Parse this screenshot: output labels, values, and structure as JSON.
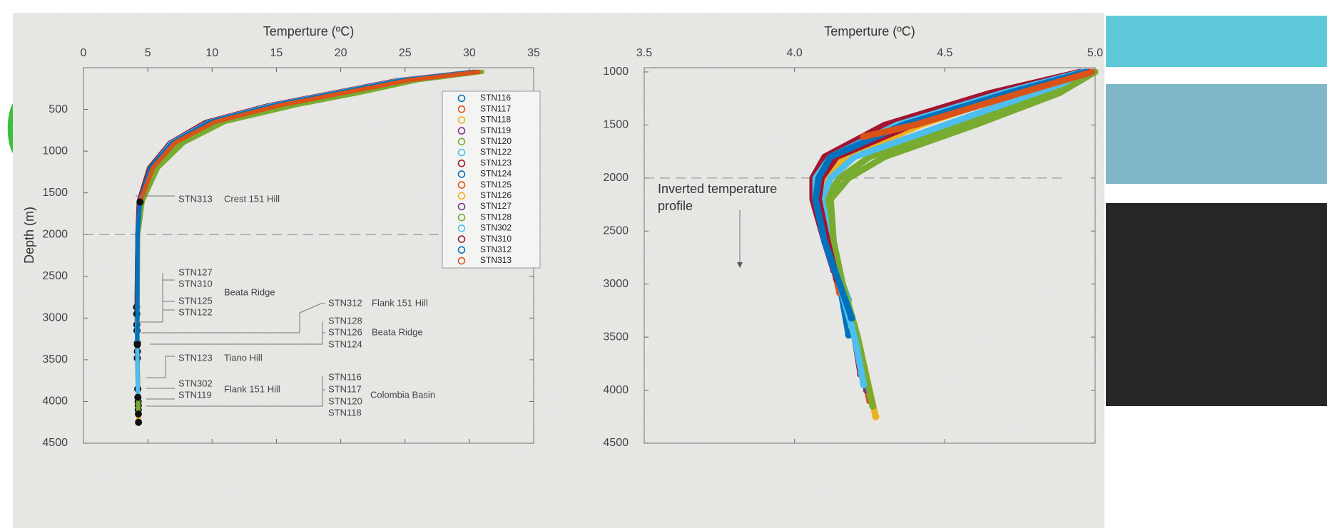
{
  "chart_data": [
    {
      "type": "line",
      "xlabel": "Temperture (ºC)",
      "ylabel": "Depth (m)",
      "xlim": [
        0,
        35
      ],
      "xticks": [
        0,
        5,
        10,
        15,
        20,
        25,
        30,
        35
      ],
      "ylim": [
        0,
        4500
      ],
      "yticks": [
        500,
        1000,
        1500,
        2000,
        2500,
        3000,
        3500,
        4000,
        4500
      ],
      "y_inverted": true,
      "legend": true,
      "end_markers": true,
      "ref_line": 2000,
      "annotations": [
        "STN313",
        "Crest 151 Hill",
        "STN127",
        "STN310",
        "STN125",
        "STN122",
        "Beata Ridge",
        "STN312",
        "Flank 151 Hill",
        "STN128",
        "STN126",
        "STN124",
        "Beata Ridge",
        "STN123",
        "Tiano Hill",
        "STN302",
        "STN119",
        "Flank 151 Hill",
        "STN116",
        "STN117",
        "STN120",
        "STN118",
        "Colombia Basin"
      ],
      "series": [
        {
          "name": "STN116",
          "color": "#0072BD",
          "x": [
            30.3,
            24.5,
            19.5,
            14.5,
            9.6,
            6.8,
            5.2,
            4.4,
            4.2,
            4.15,
            4.26
          ],
          "values": [
            50,
            150,
            300,
            450,
            650,
            900,
            1200,
            1600,
            2000,
            3000,
            4050
          ]
        },
        {
          "name": "STN117",
          "color": "#D95319",
          "x": [
            30.8,
            25.5,
            20.5,
            15.5,
            10.3,
            7.2,
            5.4,
            4.5,
            4.2,
            4.15,
            4.26
          ],
          "values": [
            50,
            150,
            300,
            450,
            650,
            900,
            1200,
            1600,
            2000,
            3000,
            4100
          ]
        },
        {
          "name": "STN118",
          "color": "#EDB120",
          "x": [
            30.6,
            25.2,
            20.2,
            15.2,
            10.1,
            7.1,
            5.3,
            4.4,
            4.2,
            4.15,
            4.28
          ],
          "values": [
            50,
            150,
            300,
            450,
            650,
            900,
            1200,
            1600,
            2000,
            3000,
            4250
          ]
        },
        {
          "name": "STN119",
          "color": "#7E2F8E",
          "x": [
            30.4,
            24.8,
            19.8,
            14.8,
            9.9,
            6.9,
            5.3,
            4.4,
            4.2,
            4.15,
            4.25
          ],
          "values": [
            50,
            150,
            300,
            450,
            650,
            900,
            1200,
            1600,
            2000,
            3000,
            4000
          ]
        },
        {
          "name": "STN120",
          "color": "#77AC30",
          "x": [
            31,
            26,
            21.5,
            16.5,
            11,
            7.8,
            5.8,
            4.6,
            4.25,
            4.16,
            4.27
          ],
          "values": [
            50,
            150,
            300,
            450,
            650,
            900,
            1200,
            1600,
            2000,
            3000,
            4150
          ]
        },
        {
          "name": "STN122",
          "color": "#4DBEEE",
          "x": [
            30.5,
            25,
            20,
            15,
            10,
            7,
            5.3,
            4.4,
            4.2,
            4.16
          ],
          "values": [
            50,
            150,
            300,
            450,
            650,
            900,
            1200,
            1600,
            2000,
            3150
          ]
        },
        {
          "name": "STN123",
          "color": "#A2142F",
          "x": [
            30.2,
            24.4,
            19.4,
            14.4,
            9.5,
            6.7,
            5.1,
            4.3,
            4.2,
            4.15,
            4.22
          ],
          "values": [
            50,
            150,
            300,
            450,
            650,
            900,
            1200,
            1600,
            2000,
            3000,
            3850
          ]
        },
        {
          "name": "STN124",
          "color": "#0072BD",
          "x": [
            30.4,
            24.9,
            19.9,
            14.9,
            9.9,
            6.9,
            5.2,
            4.4,
            4.2,
            4.18
          ],
          "values": [
            50,
            150,
            300,
            450,
            650,
            900,
            1200,
            1600,
            2000,
            3480
          ]
        },
        {
          "name": "STN125",
          "color": "#D95319",
          "x": [
            30.6,
            25.1,
            20.1,
            15.1,
            10.1,
            7,
            5.3,
            4.4,
            4.2,
            4.15
          ],
          "values": [
            50,
            150,
            300,
            450,
            650,
            900,
            1200,
            1600,
            2000,
            3080
          ]
        },
        {
          "name": "STN126",
          "color": "#EDB120",
          "x": [
            30.7,
            25.3,
            20.3,
            15.3,
            10.2,
            7.1,
            5.4,
            4.5,
            4.2,
            4.19
          ],
          "values": [
            50,
            150,
            300,
            450,
            650,
            900,
            1200,
            1600,
            2000,
            3400
          ]
        },
        {
          "name": "STN127",
          "color": "#7E2F8E",
          "x": [
            30.5,
            25,
            20,
            15,
            10,
            7,
            5.3,
            4.4,
            4.2,
            4.13
          ],
          "values": [
            50,
            150,
            300,
            450,
            650,
            900,
            1200,
            1600,
            2000,
            2870
          ]
        },
        {
          "name": "STN128",
          "color": "#77AC30",
          "x": [
            30.9,
            25.8,
            21.2,
            16.2,
            10.8,
            7.6,
            5.7,
            4.6,
            4.25,
            4.19
          ],
          "values": [
            50,
            150,
            300,
            450,
            650,
            900,
            1200,
            1600,
            2000,
            3300
          ]
        },
        {
          "name": "STN302",
          "color": "#4DBEEE",
          "x": [
            30.3,
            24.6,
            19.6,
            14.6,
            9.7,
            6.8,
            5.2,
            4.4,
            4.2,
            4.15,
            4.23
          ],
          "values": [
            50,
            150,
            300,
            450,
            650,
            900,
            1200,
            1600,
            2000,
            3000,
            3950
          ]
        },
        {
          "name": "STN310",
          "color": "#A2142F",
          "x": [
            30.6,
            25.2,
            20.2,
            15.2,
            10.1,
            7.1,
            5.3,
            4.4,
            4.2,
            4.14
          ],
          "values": [
            50,
            150,
            300,
            450,
            650,
            900,
            1200,
            1600,
            2000,
            2950
          ]
        },
        {
          "name": "STN312",
          "color": "#0072BD",
          "x": [
            30.4,
            24.8,
            19.8,
            14.8,
            9.8,
            6.9,
            5.2,
            4.4,
            4.2,
            4.19
          ],
          "values": [
            50,
            150,
            300,
            450,
            650,
            900,
            1200,
            1600,
            2000,
            3320
          ]
        },
        {
          "name": "STN313",
          "color": "#D95319",
          "x": [
            30.7,
            25.3,
            20.3,
            15.3,
            10.2,
            7.1,
            5.4,
            4.4
          ],
          "values": [
            50,
            150,
            300,
            450,
            650,
            900,
            1200,
            1610
          ]
        }
      ]
    },
    {
      "type": "line",
      "xlabel": "Temperture (ºC)",
      "xlim": [
        3.5,
        5
      ],
      "xticks": [
        3.5,
        {
          "value": 4,
          "label": "4.0"
        },
        4.5,
        {
          "value": 5,
          "label": "5.0"
        }
      ],
      "ylim": [
        960,
        4500
      ],
      "yticks": [
        1000,
        1500,
        2000,
        2500,
        3000,
        3500,
        4000,
        4500
      ],
      "y_inverted": true,
      "legend": false,
      "end_markers": false,
      "ref_line": 2000,
      "annotations": [
        "Inverted temperature",
        "profile"
      ],
      "series": [
        {
          "name": "STN116",
          "color": "#0072BD",
          "x": [
            4.97,
            4.7,
            4.35,
            4.12,
            4.08,
            4.07,
            4.1,
            4.15,
            4.2,
            4.25
          ],
          "values": [
            1000,
            1200,
            1500,
            1800,
            2000,
            2200,
            2600,
            3000,
            3500,
            4050
          ]
        },
        {
          "name": "STN117",
          "color": "#D95319",
          "x": [
            4.99,
            4.74,
            4.4,
            4.15,
            4.09,
            4.08,
            4.11,
            4.15,
            4.2,
            4.25
          ],
          "values": [
            1000,
            1200,
            1500,
            1800,
            2000,
            2200,
            2600,
            3000,
            3500,
            4100
          ]
        },
        {
          "name": "STN118",
          "color": "#EDB120",
          "x": [
            4.98,
            4.73,
            4.42,
            4.17,
            4.1,
            4.08,
            4.11,
            4.16,
            4.21,
            4.27
          ],
          "values": [
            1000,
            1200,
            1500,
            1800,
            2000,
            2200,
            2600,
            3000,
            3500,
            4250
          ]
        },
        {
          "name": "STN119",
          "color": "#7E2F8E",
          "x": [
            4.96,
            4.68,
            4.33,
            4.11,
            4.07,
            4.07,
            4.1,
            4.15,
            4.2,
            4.24
          ],
          "values": [
            1000,
            1200,
            1500,
            1800,
            2000,
            2200,
            2600,
            3000,
            3500,
            4000
          ]
        },
        {
          "name": "STN120",
          "color": "#77AC30",
          "x": [
            5,
            4.85,
            4.55,
            4.25,
            4.15,
            4.1,
            4.12,
            4.16,
            4.21,
            4.26
          ],
          "values": [
            1000,
            1200,
            1500,
            1800,
            2000,
            2200,
            2600,
            3000,
            3500,
            4150
          ]
        },
        {
          "name": "STN122",
          "color": "#4DBEEE",
          "x": [
            5,
            4.8,
            4.5,
            4.2,
            4.12,
            4.09,
            4.12,
            4.16,
            4.18
          ],
          "values": [
            1000,
            1200,
            1500,
            1800,
            2000,
            2200,
            2600,
            3000,
            3150
          ]
        },
        {
          "name": "STN123",
          "color": "#A2142F",
          "x": [
            4.95,
            4.65,
            4.3,
            4.1,
            4.06,
            4.06,
            4.1,
            4.15,
            4.2,
            4.22
          ],
          "values": [
            1000,
            1200,
            1500,
            1800,
            2000,
            2200,
            2600,
            3000,
            3500,
            3850
          ]
        },
        {
          "name": "STN124",
          "color": "#0072BD",
          "x": [
            4.97,
            4.7,
            4.36,
            4.12,
            4.08,
            4.07,
            4.1,
            4.15,
            4.18
          ],
          "values": [
            1000,
            1200,
            1500,
            1800,
            2000,
            2200,
            2600,
            3000,
            3480
          ]
        },
        {
          "name": "STN125",
          "color": "#D95319",
          "x": [
            4.98,
            4.72,
            4.38,
            4.13,
            4.08,
            4.08,
            4.11,
            4.15
          ],
          "values": [
            1000,
            1200,
            1500,
            1800,
            2000,
            2200,
            2600,
            3080
          ]
        },
        {
          "name": "STN126",
          "color": "#EDB120",
          "x": [
            4.99,
            4.75,
            4.4,
            4.15,
            4.09,
            4.08,
            4.11,
            4.15,
            4.19
          ],
          "values": [
            1000,
            1200,
            1500,
            1800,
            2000,
            2200,
            2600,
            3000,
            3400
          ]
        },
        {
          "name": "STN127",
          "color": "#7E2F8E",
          "x": [
            4.97,
            4.71,
            4.37,
            4.13,
            4.08,
            4.07,
            4.1,
            4.13
          ],
          "values": [
            1000,
            1200,
            1500,
            1800,
            2000,
            2200,
            2600,
            2870
          ]
        },
        {
          "name": "STN128",
          "color": "#77AC30",
          "x": [
            5,
            4.88,
            4.6,
            4.3,
            4.18,
            4.12,
            4.13,
            4.16,
            4.19
          ],
          "values": [
            1000,
            1200,
            1500,
            1800,
            2000,
            2200,
            2600,
            3000,
            3300
          ]
        },
        {
          "name": "STN302",
          "color": "#4DBEEE",
          "x": [
            4.96,
            4.69,
            4.34,
            4.12,
            4.07,
            4.07,
            4.1,
            4.15,
            4.2,
            4.23
          ],
          "values": [
            1000,
            1200,
            1500,
            1800,
            2000,
            2200,
            2600,
            3000,
            3500,
            3950
          ]
        },
        {
          "name": "STN310",
          "color": "#A2142F",
          "x": [
            4.98,
            4.74,
            4.39,
            4.14,
            4.09,
            4.08,
            4.11,
            4.14
          ],
          "values": [
            1000,
            1200,
            1500,
            1800,
            2000,
            2200,
            2600,
            2950
          ]
        },
        {
          "name": "STN312",
          "color": "#0072BD",
          "x": [
            4.97,
            4.71,
            4.36,
            4.12,
            4.08,
            4.07,
            4.1,
            4.15,
            4.19
          ],
          "values": [
            1000,
            1200,
            1500,
            1800,
            2000,
            2200,
            2600,
            3000,
            3320
          ]
        },
        {
          "name": "STN313",
          "color": "#D95319",
          "x": [
            4.99,
            4.75,
            4.4,
            4.23
          ],
          "values": [
            1000,
            1200,
            1500,
            1610
          ]
        }
      ]
    }
  ]
}
